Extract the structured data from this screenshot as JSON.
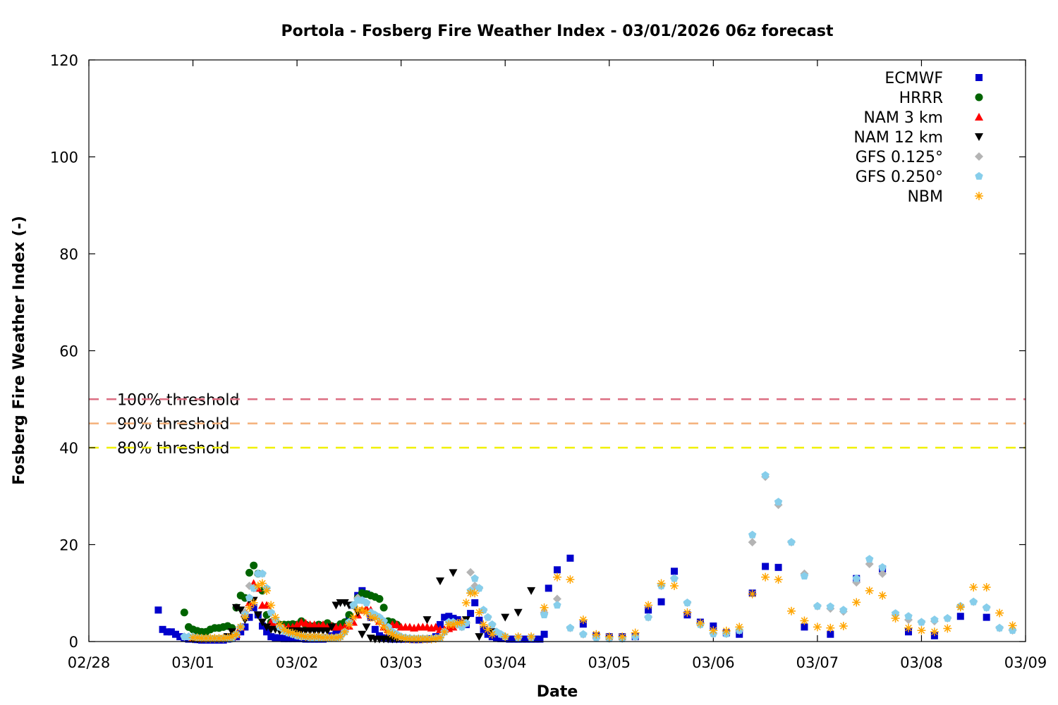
{
  "chart_data": {
    "type": "scatter",
    "title": "Portola - Fosberg Fire Weather Index - 03/01/2026 06z forecast",
    "xlabel": "Date",
    "ylabel": "Fosberg Fire Weather Index (-)",
    "x_units": "days since 02/28 00z",
    "xlim": [
      0,
      9
    ],
    "ylim": [
      0,
      120
    ],
    "x_tick_labels": [
      "02/28",
      "03/01",
      "03/02",
      "03/03",
      "03/04",
      "03/05",
      "03/06",
      "03/07",
      "03/08",
      "03/09"
    ],
    "y_ticks": [
      0,
      20,
      40,
      60,
      80,
      100,
      120
    ],
    "y_tick_labels": [
      "0",
      "20",
      "40",
      "60",
      "80",
      "100",
      "120"
    ],
    "grid": false,
    "legend_position": "top-right",
    "thresholds": [
      {
        "label": "100% threshold",
        "value": 50,
        "color": "#dc6e82"
      },
      {
        "label": "90% threshold",
        "value": 45,
        "color": "#f4b07a"
      },
      {
        "label": "80% threshold",
        "value": 40,
        "color": "#f0f000"
      }
    ],
    "series": [
      {
        "name": "ECMWF",
        "marker": "square",
        "color": "#0000cc",
        "segments": [
          {
            "start": 0.667,
            "step_h": 1,
            "values": [
              6.5,
              2.5,
              2,
              2,
              1.5,
              1,
              0.7,
              0.5,
              0.5,
              0.4,
              0.3,
              0.3,
              0.3,
              0.3,
              0.3,
              0.3,
              0.5,
              0.8,
              1,
              2,
              3,
              5,
              7,
              5.5,
              3.2,
              2,
              1,
              0.8,
              0.7,
              0.6,
              0.6,
              0.6,
              0.6,
              0.6,
              0.5,
              0.5,
              0.5,
              0.5,
              0.5,
              0.8,
              1.2,
              1.8,
              2.5,
              3.5,
              5,
              7.5,
              9.5,
              10.5,
              9.8,
              5,
              2.5,
              1.2,
              0.8,
              0.6,
              0.5,
              0.5,
              0.5,
              0.5,
              0.5,
              0.4,
              0.4,
              0.5,
              0.5,
              0.6,
              1,
              3.5,
              5,
              5.2,
              4.8,
              4.5,
              3.8,
              3.5,
              5.8,
              8,
              4.4,
              2.5,
              1.5,
              1,
              0.8,
              0.6,
              0.6,
              0.5,
              0.5,
              0.5,
              0.5,
              0.5,
              0.5,
              0.5,
              0.5,
              1.5,
              11
            ]
          },
          {
            "start": 4.5,
            "step_h": 3,
            "values": [
              14.8,
              17.2,
              3.6,
              1.2,
              1,
              1,
              1,
              6.5,
              8.2,
              14.5,
              5.5,
              4,
              3.2,
              1.8,
              1.5,
              10,
              15.5,
              15.3
            ]
          },
          {
            "start": 6.875,
            "step_h": 6,
            "values": [
              3,
              1.5,
              13,
              15,
              2,
              1.2,
              5.2,
              5
            ]
          }
        ]
      },
      {
        "name": "HRRR",
        "marker": "circle",
        "color": "#006400",
        "segments": [
          {
            "start": 0.917,
            "step_h": 1,
            "values": [
              6,
              3,
              2.5,
              2.2,
              2,
              2,
              2.5,
              2.8,
              2.8,
              3,
              3.2,
              2.8,
              7,
              9.5,
              9,
              14.2,
              15.7,
              14,
              10.5,
              5.5,
              4,
              3.8,
              3.5,
              3.5,
              3.5,
              3.6,
              3.5,
              4.2,
              3.5,
              3.2,
              3.2,
              3.5,
              3.3,
              3.8,
              3.2,
              3,
              3.6,
              4,
              5.5,
              7.5,
              9,
              10,
              9.8,
              9.5,
              9.2,
              8.8,
              7,
              4.2,
              4,
              3.5
            ]
          }
        ]
      },
      {
        "name": "NAM 3 km",
        "marker": "triangle-up",
        "color": "#ff0000",
        "segments": [
          {
            "start": 1.0,
            "step_h": 1,
            "values": [
              0.8,
              0.7,
              0.6,
              0.6,
              0.6,
              0.6,
              0.6,
              0.7,
              0.8,
              1,
              1.5,
              3,
              6,
              8,
              12,
              11,
              7.5,
              7.5,
              4,
              3.5,
              3,
              3,
              3,
              3,
              3.5,
              4,
              3.8,
              3.5,
              3.5,
              3.2,
              3.5,
              3,
              3.2,
              3,
              3,
              3,
              3.2,
              4,
              5.5,
              6.5,
              6.8,
              6.5,
              5.5,
              4.2,
              3,
              2.5,
              3.5,
              3.5,
              3,
              3,
              3,
              2.8,
              3,
              3,
              3,
              2.8,
              3,
              2.5,
              2.5,
              2.7,
              3
            ]
          }
        ]
      },
      {
        "name": "NAM 12 km",
        "marker": "triangle-down",
        "color": "#000000",
        "segments": [
          {
            "start": 1.0,
            "step_h": 1,
            "values": [
              0.5,
              0.5,
              0.5,
              0.5,
              0.5,
              0.5,
              0.5,
              0.6,
              1,
              2,
              7,
              6.5,
              4.5,
              8.5,
              8.5,
              5.5,
              4,
              3,
              2.5,
              2.5,
              2.2,
              2.2,
              2.2,
              2.2,
              2.2,
              2.2,
              2.2,
              2.2,
              2.2,
              2.2,
              2.2,
              2.2,
              3,
              7.5,
              8,
              8,
              7.5,
              7.5,
              6,
              1.5,
              3,
              0.7,
              0.5,
              0.5,
              0.5,
              0.5,
              0.5,
              0.5,
              0.5,
              0.5,
              0.5,
              0.5,
              0.5,
              0.5
            ]
          },
          {
            "start": 3.25,
            "step_h": 3,
            "values": [
              4.5,
              12.5,
              14.2,
              4.5,
              1,
              2,
              5,
              6,
              10.5
            ]
          }
        ]
      },
      {
        "name": "GFS 0.125°",
        "marker": "diamond",
        "color": "#b4b4b4",
        "segments": [
          {
            "start": 0.917,
            "step_h": 1,
            "values": [
              1,
              1,
              1,
              0.8,
              0.7,
              0.6,
              0.6,
              0.6,
              0.6,
              0.6,
              0.6,
              0.6,
              1.5,
              3,
              6,
              11.5,
              11,
              14,
              14,
              11,
              6,
              4.5,
              3,
              2.2,
              1.8,
              1.5,
              1.2,
              1,
              1,
              0.8,
              0.8,
              0.8,
              0.8,
              0.8,
              0.8,
              0.8,
              1,
              2,
              4,
              7.5,
              9,
              8.5,
              8,
              6,
              5.5,
              5,
              4.2,
              3,
              2,
              1.5,
              1,
              0.8,
              0.7,
              0.6,
              0.6,
              0.6,
              0.6,
              0.6,
              0.7,
              0.8,
              2,
              4,
              4,
              3.5,
              3,
              3.8,
              14.3,
              11.5,
              11,
              6.5,
              5,
              3.5,
              2,
              1.5
            ]
          },
          {
            "start": 4.0,
            "step_h": 3,
            "values": [
              1,
              0.8,
              0.8,
              6,
              8.8,
              2.8,
              1.5,
              0.8,
              0.6,
              0.6,
              1,
              5,
              11.5,
              13,
              8,
              3.5,
              1.6
            ]
          },
          {
            "start": 6.125,
            "step_h": 3,
            "values": [
              1.6,
              2.3,
              20.5,
              34,
              28.2,
              20.5,
              14,
              7.3,
              6.8,
              6.2,
              12.2,
              16,
              14,
              5.5,
              4.5,
              4,
              4.2,
              4.8,
              7.3,
              8.2,
              7,
              2.8,
              2.3
            ]
          }
        ]
      },
      {
        "name": "GFS 0.250°",
        "marker": "pentagon",
        "color": "#87ceeb",
        "segments": [
          {
            "start": 0.917,
            "step_h": 1,
            "values": [
              1,
              1,
              1,
              0.8,
              0.7,
              0.6,
              0.6,
              0.6,
              0.6,
              0.6,
              0.6,
              0.6,
              1.5,
              3,
              5.5,
              9,
              11,
              14,
              14,
              11,
              6,
              4.5,
              3,
              2.2,
              1.8,
              1.5,
              1.2,
              1,
              1,
              0.8,
              0.8,
              0.8,
              0.8,
              0.8,
              0.8,
              0.8,
              1,
              2,
              4,
              7.5,
              8.5,
              8.5,
              8,
              6,
              5.5,
              5,
              4.2,
              3,
              2,
              1.5,
              1,
              0.8,
              0.7,
              0.6,
              0.6,
              0.6,
              0.6,
              0.6,
              0.7,
              0.8,
              2,
              4,
              4,
              3.5,
              3,
              3.8,
              10.5,
              13,
              11,
              6.5,
              5,
              3.5,
              2,
              1.5
            ]
          },
          {
            "start": 4.0,
            "step_h": 3,
            "values": [
              1,
              0.8,
              0.8,
              5.5,
              7.5,
              2.8,
              1.5,
              0.8,
              0.6,
              0.6,
              1,
              5,
              11.5,
              13,
              8,
              3.5,
              1.6
            ]
          },
          {
            "start": 6.125,
            "step_h": 3,
            "values": [
              1.6,
              2.3,
              22,
              34.3,
              28.8,
              20.5,
              13.5,
              7.3,
              7.2,
              6.5,
              13,
              17,
              15.3,
              5.8,
              5.2,
              4,
              4.5,
              4.8,
              7.3,
              8.2,
              7,
              2.8,
              2.3
            ]
          }
        ]
      },
      {
        "name": "NBM",
        "marker": "asterisk",
        "color": "#ffa500",
        "segments": [
          {
            "start": 1.0,
            "step_h": 1,
            "values": [
              0.8,
              0.8,
              0.7,
              0.7,
              0.7,
              0.7,
              0.7,
              0.7,
              0.8,
              1,
              1.5,
              3,
              5,
              7,
              8,
              11.5,
              12,
              10.5,
              7.5,
              5,
              3.5,
              2.5,
              2,
              1.8,
              1.5,
              1.2,
              1,
              1,
              1,
              1,
              0.8,
              0.8,
              0.8,
              0.8,
              1,
              2,
              3.5,
              5,
              6.5,
              6.5,
              6,
              5,
              4.8,
              4,
              3,
              2,
              1.5,
              1,
              0.8,
              0.6,
              0.5,
              0.5,
              0.5,
              0.5,
              0.5,
              0.5,
              0.6,
              0.8,
              2,
              3.5,
              3.5,
              3.8,
              4,
              8,
              10,
              10,
              6,
              3.5,
              2.5,
              1.5
            ]
          },
          {
            "start": 4.0,
            "step_h": 3,
            "values": [
              1,
              1,
              1,
              7,
              13.3,
              12.8,
              4.5,
              1.5,
              1,
              1,
              1.8,
              7.5,
              12,
              11.5,
              6,
              3.8,
              2.3,
              2.2,
              3,
              9.8,
              13.3,
              12.8,
              6.3,
              4.3,
              3,
              2.8,
              3.2,
              8.1,
              10.5,
              9.5,
              4.8,
              2.8,
              2.3,
              2,
              2.7,
              7.1,
              11.2,
              11.2,
              5.9,
              3.3
            ]
          }
        ]
      }
    ]
  }
}
